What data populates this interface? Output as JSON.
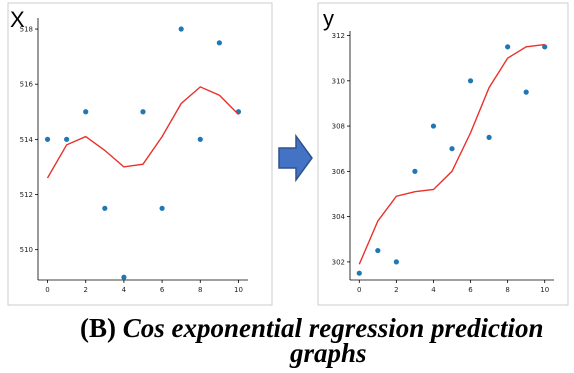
{
  "figure": {
    "arrow_color": "#4472c4",
    "caption_label": "(B)",
    "caption_line1": "Cos  exponential regression prediction",
    "caption_line2": "graphs"
  },
  "chart_data": [
    {
      "type": "scatter",
      "title": "X",
      "xlabel": "",
      "ylabel": "",
      "xlim": [
        -0.5,
        10.5
      ],
      "ylim": [
        508.9,
        518.4
      ],
      "xticks": [
        0,
        2,
        4,
        6,
        8,
        10
      ],
      "yticks": [
        510,
        512,
        514,
        516,
        518
      ],
      "grid": false,
      "series": [
        {
          "kind": "points",
          "color": "#1f77b4",
          "x": [
            0,
            1,
            2,
            3,
            4,
            5,
            6,
            7,
            8,
            9,
            10
          ],
          "y": [
            514.0,
            514.0,
            515.0,
            511.5,
            509.0,
            515.0,
            511.5,
            518.0,
            514.0,
            517.5,
            515.0
          ]
        },
        {
          "kind": "line",
          "color": "#e8322c",
          "x": [
            0,
            1,
            2,
            3,
            4,
            5,
            6,
            7,
            8,
            9,
            10
          ],
          "y": [
            512.6,
            513.8,
            514.1,
            513.6,
            513.0,
            513.1,
            514.1,
            515.3,
            515.9,
            515.6,
            514.9
          ]
        }
      ]
    },
    {
      "type": "scatter",
      "title": "y",
      "xlabel": "",
      "ylabel": "",
      "xlim": [
        -0.5,
        10.5
      ],
      "ylim": [
        301.2,
        312.2
      ],
      "xticks": [
        0,
        2,
        4,
        6,
        8,
        10
      ],
      "yticks": [
        302,
        304,
        306,
        308,
        310,
        312
      ],
      "grid": false,
      "series": [
        {
          "kind": "points",
          "color": "#1f77b4",
          "x": [
            0,
            1,
            2,
            3,
            4,
            5,
            6,
            7,
            8,
            9,
            10
          ],
          "y": [
            301.5,
            302.5,
            302.0,
            306.0,
            308.0,
            307.0,
            310.0,
            307.5,
            311.5,
            309.5,
            311.5
          ]
        },
        {
          "kind": "line",
          "color": "#e8322c",
          "x": [
            0,
            1,
            2,
            3,
            4,
            5,
            6,
            7,
            8,
            9,
            10
          ],
          "y": [
            301.9,
            303.8,
            304.9,
            305.1,
            305.2,
            306.0,
            307.7,
            309.7,
            311.0,
            311.5,
            311.6
          ]
        }
      ]
    }
  ]
}
